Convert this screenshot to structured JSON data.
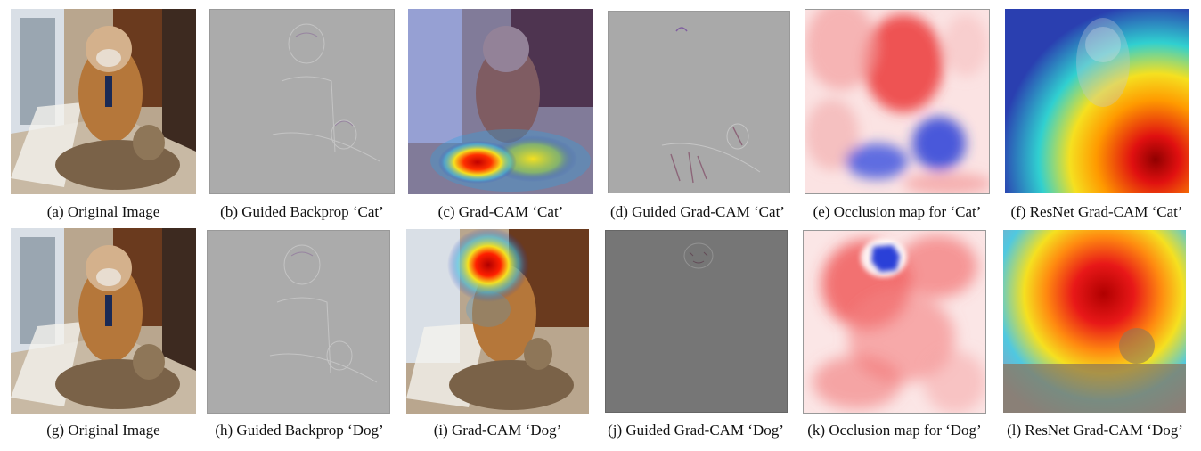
{
  "figure": {
    "top_row": [
      {
        "caption": "(a) Original Image",
        "kind": "original"
      },
      {
        "caption": "(b) Guided Backprop ‘Cat’",
        "kind": "guided"
      },
      {
        "caption": "(c) Grad-CAM ‘Cat’",
        "kind": "gradcam-cat"
      },
      {
        "caption": "(d) Guided Grad-CAM ‘Cat’",
        "kind": "guided-gradcam-cat"
      },
      {
        "caption": "(e) Occlusion map for ‘Cat’",
        "kind": "occlusion-cat"
      },
      {
        "caption": "(f) ResNet Grad-CAM ‘Cat’",
        "kind": "resnet-cat"
      }
    ],
    "bottom_row": [
      {
        "caption": "(g) Original Image",
        "kind": "original"
      },
      {
        "caption": "(h) Guided Backprop ‘Dog’",
        "kind": "guided"
      },
      {
        "caption": "(i) Grad-CAM ‘Dog’",
        "kind": "gradcam-dog"
      },
      {
        "caption": "(j) Guided Grad-CAM ‘Dog’",
        "kind": "guided-gradcam-dog"
      },
      {
        "caption": "(k) Occlusion map for ‘Dog’",
        "kind": "occlusion-dog"
      },
      {
        "caption": "(l) ResNet Grad-CAM ‘Dog’",
        "kind": "resnet-dog"
      }
    ]
  },
  "colors": {
    "heat_red": "#d40000",
    "heat_yellow": "#f5e020",
    "heat_blue": "#1b2bd6",
    "occlusion_red": "#e8242a",
    "occlusion_blue": "#2a3fd8",
    "guided_gray": "#a8a8a8",
    "guided_dark_gray": "#757575"
  }
}
